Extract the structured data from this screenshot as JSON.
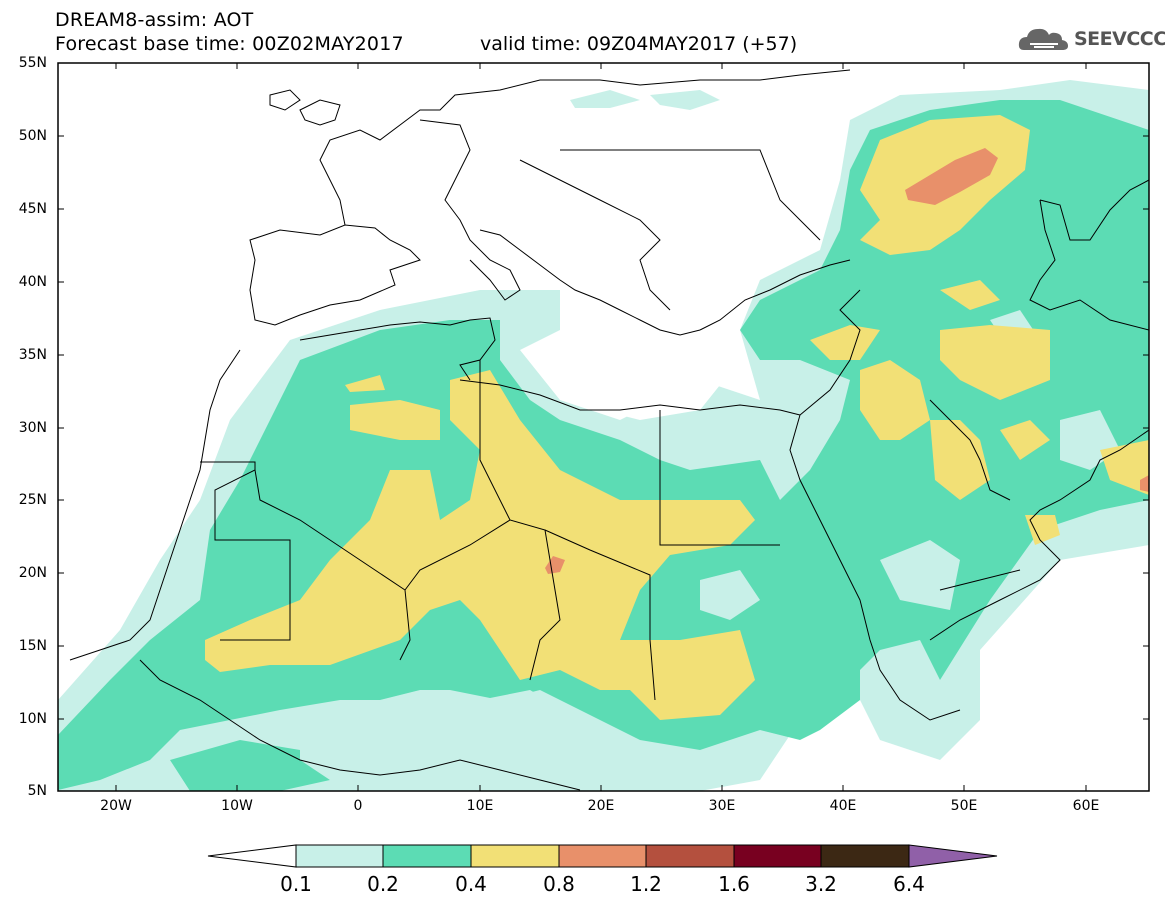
{
  "header": {
    "title": "DREAM8-assim: AOT",
    "base_time": "Forecast base time: 00Z02MAY2017",
    "valid_time": "valid time: 09Z04MAY2017 (+57)"
  },
  "logo": {
    "text": "SEEVCCC",
    "icon": "cloud-icon"
  },
  "map": {
    "lat_labels": [
      "55N",
      "50N",
      "45N",
      "40N",
      "35N",
      "30N",
      "25N",
      "20N",
      "15N",
      "10N",
      "5N"
    ],
    "lon_labels": [
      "20W",
      "10W",
      "0",
      "10E",
      "20E",
      "30E",
      "40E",
      "50E",
      "60E"
    ]
  },
  "legend": {
    "labels": [
      "0.1",
      "0.2",
      "0.4",
      "0.8",
      "1.2",
      "1.6",
      "3.2",
      "6.4"
    ],
    "colors": {
      "below": "#ffffff",
      "c1": "#c8f0e8",
      "c2": "#5cdcb4",
      "c3": "#f2e076",
      "c4": "#e8906a",
      "c5": "#b4503e",
      "c6": "#780020",
      "c7": "#3c2814",
      "above": "#9060a8"
    }
  }
}
